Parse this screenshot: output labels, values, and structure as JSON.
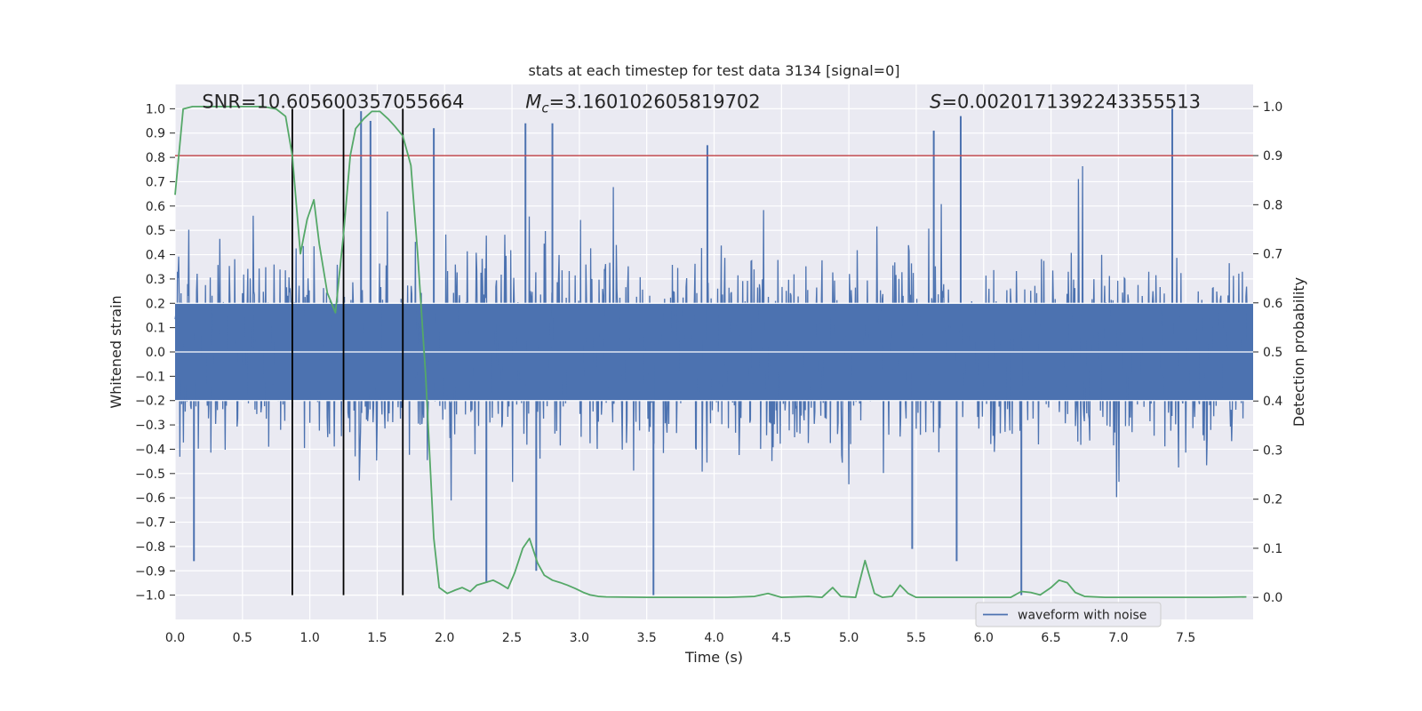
{
  "chart_data": {
    "type": "line",
    "title": "stats at each timestep for test data 3134 [signal=0]",
    "xlabel": "Time (s)",
    "ylabel_left": "Whitened strain",
    "ylabel_right": "Detection probability",
    "xlim": [
      0.0,
      8.0
    ],
    "ylim_left": [
      -1.1,
      1.1
    ],
    "ylim_right": [
      -0.045,
      1.045
    ],
    "x_ticks": [
      0.0,
      0.5,
      1.0,
      1.5,
      2.0,
      2.5,
      3.0,
      3.5,
      4.0,
      4.5,
      5.0,
      5.5,
      6.0,
      6.5,
      7.0,
      7.5
    ],
    "x_tick_labels": [
      "0.0",
      "0.5",
      "1.0",
      "1.5",
      "2.0",
      "2.5",
      "3.0",
      "3.5",
      "4.0",
      "4.5",
      "5.0",
      "5.5",
      "6.0",
      "6.5",
      "7.0",
      "7.5"
    ],
    "y_left_ticks": [
      1.0,
      0.9,
      0.8,
      0.7,
      0.6,
      0.5,
      0.4,
      0.3,
      0.2,
      0.1,
      0.0,
      -0.1,
      -0.2,
      -0.3,
      -0.4,
      -0.5,
      -0.6,
      -0.7,
      -0.8,
      -0.9,
      -1.0
    ],
    "y_left_tick_labels": [
      "1.0",
      "0.9",
      "0.8",
      "0.7",
      "0.6",
      "0.5",
      "0.4",
      "0.3",
      "0.2",
      "0.1",
      "0.0",
      "−0.1",
      "−0.2",
      "−0.3",
      "−0.4",
      "−0.5",
      "−0.6",
      "−0.7",
      "−0.8",
      "−0.9",
      "−1.0"
    ],
    "y_right_ticks": [
      1.0,
      0.9,
      0.8,
      0.7,
      0.6,
      0.5,
      0.4,
      0.3,
      0.2,
      0.1,
      0.0
    ],
    "y_right_tick_labels": [
      "1.0",
      "0.9",
      "0.8",
      "0.7",
      "0.6",
      "0.5",
      "0.4",
      "0.3",
      "0.2",
      "0.1",
      "0.0"
    ],
    "threshold": {
      "value": 0.9,
      "axis": "right",
      "color": "#c44e52"
    },
    "vertical_markers": {
      "x": [
        0.87,
        1.25,
        1.69
      ],
      "y_range": [
        -1.0,
        1.0
      ],
      "color": "#000000"
    },
    "annotations": {
      "snr": {
        "label": "SNR",
        "value": "10.605600357055664",
        "x": 0.2,
        "y": 1.0
      },
      "mc": {
        "label": "M",
        "sub": "c",
        "value": "3.160102605819702",
        "x": 2.6,
        "y": 1.0
      },
      "s": {
        "label": "S",
        "value": "0.0020171392243355513",
        "x": 5.6,
        "y": 1.0
      }
    },
    "legend": {
      "label": "waveform with noise",
      "position": "lower-right"
    },
    "series": [
      {
        "name": "waveform with noise",
        "axis": "left",
        "color": "#4c72b0",
        "description": "dense whitened strain noise, typical amplitude about ±0.35, peaks up to ±1.0",
        "noise_amplitude": 0.35,
        "sample_count": 1800,
        "spikes": [
          {
            "x": 1.38,
            "y": 0.99
          },
          {
            "x": 1.45,
            "y": 0.95
          },
          {
            "x": 1.92,
            "y": 0.92
          },
          {
            "x": 2.6,
            "y": 0.94
          },
          {
            "x": 2.8,
            "y": 0.94
          },
          {
            "x": 3.95,
            "y": 0.85
          },
          {
            "x": 5.63,
            "y": 0.91
          },
          {
            "x": 5.83,
            "y": 0.97
          },
          {
            "x": 7.4,
            "y": 1.0
          },
          {
            "x": 3.55,
            "y": -1.0
          },
          {
            "x": 6.28,
            "y": -1.0
          },
          {
            "x": 2.31,
            "y": -0.95
          },
          {
            "x": 0.14,
            "y": -0.86
          },
          {
            "x": 5.8,
            "y": -0.86
          },
          {
            "x": 2.68,
            "y": -0.9
          },
          {
            "x": 5.47,
            "y": -0.81
          }
        ]
      },
      {
        "name": "detection probability",
        "axis": "right",
        "color": "#55a868",
        "x": [
          0.0,
          0.06,
          0.13,
          0.5,
          0.65,
          0.75,
          0.82,
          0.87,
          0.93,
          0.98,
          1.03,
          1.07,
          1.13,
          1.19,
          1.25,
          1.3,
          1.34,
          1.4,
          1.46,
          1.52,
          1.58,
          1.63,
          1.69,
          1.75,
          1.8,
          1.86,
          1.92,
          1.96,
          2.02,
          2.08,
          2.13,
          2.19,
          2.24,
          2.3,
          2.36,
          2.41,
          2.47,
          2.52,
          2.58,
          2.63,
          2.69,
          2.74,
          2.8,
          2.86,
          2.91,
          2.97,
          3.03,
          3.08,
          3.14,
          3.2,
          3.5,
          3.8,
          4.1,
          4.3,
          4.4,
          4.5,
          4.7,
          4.8,
          4.88,
          4.94,
          5.05,
          5.12,
          5.19,
          5.25,
          5.32,
          5.38,
          5.44,
          5.5,
          5.8,
          6.2,
          6.28,
          6.35,
          6.42,
          6.5,
          6.56,
          6.62,
          6.68,
          6.75,
          6.9,
          7.4,
          7.7,
          7.95
        ],
        "y": [
          0.82,
          0.995,
          1.0,
          1.0,
          1.0,
          0.995,
          0.98,
          0.9,
          0.7,
          0.77,
          0.81,
          0.72,
          0.62,
          0.58,
          0.74,
          0.9,
          0.955,
          0.975,
          0.99,
          0.99,
          0.975,
          0.96,
          0.94,
          0.88,
          0.7,
          0.45,
          0.12,
          0.02,
          0.008,
          0.015,
          0.02,
          0.012,
          0.025,
          0.03,
          0.035,
          0.028,
          0.018,
          0.05,
          0.1,
          0.12,
          0.07,
          0.045,
          0.035,
          0.03,
          0.025,
          0.018,
          0.01,
          0.005,
          0.002,
          0.001,
          0.0,
          0.0,
          0.0,
          0.002,
          0.008,
          0.0,
          0.002,
          0.0,
          0.02,
          0.002,
          0.0,
          0.075,
          0.008,
          0.0,
          0.002,
          0.025,
          0.008,
          0.0,
          0.0,
          0.0,
          0.012,
          0.01,
          0.005,
          0.02,
          0.035,
          0.03,
          0.01,
          0.002,
          0.0,
          0.0,
          0.0,
          0.001
        ]
      }
    ]
  }
}
